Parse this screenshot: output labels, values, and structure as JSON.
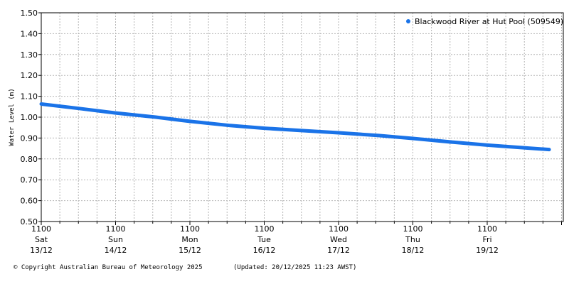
{
  "chart_data": {
    "type": "line",
    "title": "",
    "ylabel": "Water Level (m)",
    "xlabel": "",
    "ylim": [
      0.5,
      1.5
    ],
    "yticks": [
      "0.50",
      "0.60",
      "0.70",
      "0.80",
      "0.90",
      "1.00",
      "1.10",
      "1.20",
      "1.30",
      "1.40",
      "1.50"
    ],
    "grid": true,
    "legend_position": "top-right",
    "x_ticks": [
      {
        "time": "1100",
        "day": "Sat",
        "date": "13/12"
      },
      {
        "time": "1100",
        "day": "Sun",
        "date": "14/12"
      },
      {
        "time": "1100",
        "day": "Mon",
        "date": "15/12"
      },
      {
        "time": "1100",
        "day": "Tue",
        "date": "16/12"
      },
      {
        "time": "1100",
        "day": "Wed",
        "date": "17/12"
      },
      {
        "time": "1100",
        "day": "Thu",
        "date": "18/12"
      },
      {
        "time": "1100",
        "day": "Fri",
        "date": "19/12"
      }
    ],
    "series": [
      {
        "name": "Blackwood River at Hut Pool (509549)",
        "color": "#1a73e8",
        "x": [
          "2025-12-13 11:00",
          "2025-12-14 00:00",
          "2025-12-14 11:00",
          "2025-12-15 00:00",
          "2025-12-15 11:00",
          "2025-12-16 00:00",
          "2025-12-16 11:00",
          "2025-12-17 00:00",
          "2025-12-17 11:00",
          "2025-12-18 00:00",
          "2025-12-18 11:00",
          "2025-12-19 00:00",
          "2025-12-19 11:00",
          "2025-12-20 00:00",
          "2025-12-20 07:00"
        ],
        "y": [
          1.063,
          1.04,
          1.02,
          1.0,
          0.98,
          0.96,
          0.947,
          0.935,
          0.925,
          0.912,
          0.898,
          0.88,
          0.866,
          0.852,
          0.845
        ]
      }
    ]
  },
  "footer": {
    "copyright": "© Copyright Australian Bureau of Meteorology 2025",
    "updated": "(Updated: 20/12/2025 11:23 AWST)"
  }
}
